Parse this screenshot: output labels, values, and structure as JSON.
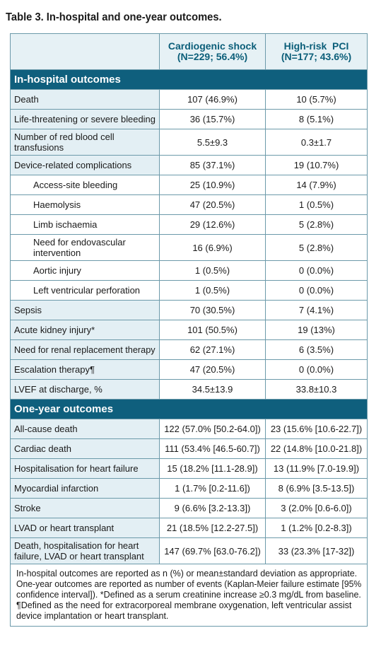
{
  "title": "Table 3. In-hospital and one-year outcomes.",
  "columns": [
    {
      "line1": "Cardiogenic shock",
      "line2": "(N=229; 56.4%)"
    },
    {
      "line1": "High-risk  PCI",
      "line2": "(N=177; 43.6%)"
    }
  ],
  "sections": [
    {
      "label": "In-hospital outcomes",
      "rows": [
        {
          "label": [
            "Death"
          ],
          "cs": "107 (46.9%)",
          "pci": "10 (5.7%)"
        },
        {
          "label": [
            "Life-threatening or severe bleeding"
          ],
          "cs": "36 (15.7%)",
          "pci": "8 (5.1%)"
        },
        {
          "label": [
            "Number of red blood cell",
            "transfusions"
          ],
          "cs": "5.5±9.3",
          "pci": "0.3±1.7"
        },
        {
          "label": [
            "Device-related complications"
          ],
          "cs": "85 (37.1%)",
          "pci": "19 (10.7%)"
        },
        {
          "label": [
            "Access-site bleeding"
          ],
          "cs": "25 (10.9%)",
          "pci": "14 (7.9%)"
        },
        {
          "label": [
            "Haemolysis"
          ],
          "cs": "47 (20.5%)",
          "pci": "1 (0.5%)"
        },
        {
          "label": [
            "Limb ischaemia"
          ],
          "cs": "29 (12.6%)",
          "pci": "5 (2.8%)"
        },
        {
          "label": [
            "Need for endovascular",
            "intervention"
          ],
          "cs": "16 (6.9%)",
          "pci": "5 (2.8%)"
        },
        {
          "label": [
            "Aortic injury"
          ],
          "cs": "1 (0.5%)",
          "pci": "0 (0.0%)"
        },
        {
          "label": [
            "Left ventricular perforation"
          ],
          "cs": "1 (0.5%)",
          "pci": "0 (0.0%)"
        },
        {
          "label": [
            "Sepsis"
          ],
          "cs": "70 (30.5%)",
          "pci": "7 (4.1%)"
        },
        {
          "label": [
            "Acute kidney injury*"
          ],
          "cs": "101 (50.5%)",
          "pci": "19 (13%)"
        },
        {
          "label": [
            "Need for renal replacement therapy"
          ],
          "cs": "62 (27.1%)",
          "pci": "6 (3.5%)"
        },
        {
          "label": [
            "Escalation therapy¶"
          ],
          "cs": "47 (20.5%)",
          "pci": "0 (0.0%)"
        },
        {
          "label": [
            "LVEF at discharge, %"
          ],
          "cs": "34.5±13.9",
          "pci": "33.8±10.3"
        }
      ]
    },
    {
      "label": "One-year outcomes",
      "rows": [
        {
          "label": [
            "All-cause death"
          ],
          "cs": "122 (57.0% [50.2-64.0])",
          "pci": "23 (15.6% [10.6-22.7])"
        },
        {
          "label": [
            "Cardiac death"
          ],
          "cs": "111 (53.4% [46.5-60.7])",
          "pci": "22 (14.8% [10.0-21.8])"
        },
        {
          "label": [
            "Hospitalisation for heart failure"
          ],
          "cs": "15 (18.2% [11.1-28.9])",
          "pci": "13 (11.9% [7.0-19.9])"
        },
        {
          "label": [
            "Myocardial infarction"
          ],
          "cs": "1 (1.7% [0.2-11.6])",
          "pci": "8 (6.9% [3.5-13.5])"
        },
        {
          "label": [
            "Stroke"
          ],
          "cs": "9 (6.6% [3.2-13.3])",
          "pci": "3 (2.0% [0.6-6.0])"
        },
        {
          "label": [
            "LVAD or heart transplant"
          ],
          "cs": "21 (18.5% [12.2-27.5])",
          "pci": "1 (1.2% [0.2-8.3])"
        },
        {
          "label": [
            "Death, hospitalisation for heart",
            "failure, LVAD or heart transplant"
          ],
          "cs": "147 (69.7% [63.0-76.2])",
          "pci": "33 (23.3% [17-32])"
        }
      ]
    }
  ],
  "footnotes": [
    "In-hospital outcomes are reported as n (%) or mean±standard deviation as appropriate.",
    "One-year outcomes are reported as number of events (Kaplan-Meier failure estimate [95%",
    "confidence interval]). *Defined as a serum creatinine increase ≥0.3 mg/dL from baseline.",
    "¶Defined as the need for extracorporeal membrane oxygenation, left ventricular assist",
    "device implantation or heart transplant."
  ]
}
